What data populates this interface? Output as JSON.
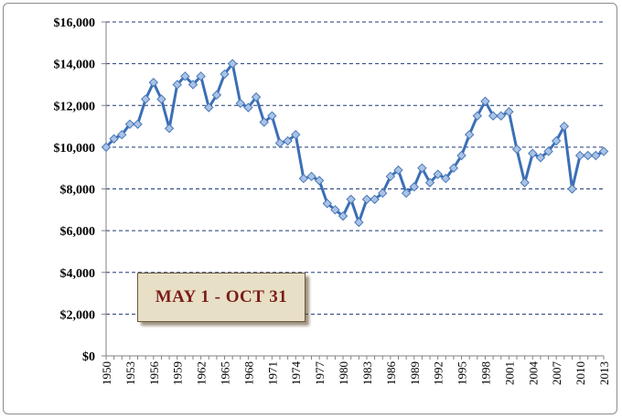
{
  "chart_data": {
    "type": "line",
    "title": "",
    "xlabel": "",
    "ylabel": "",
    "ylim": [
      0,
      16000
    ],
    "yticks": [
      "$0",
      "$2,000",
      "$4,000",
      "$6,000",
      "$8,000",
      "$10,000",
      "$12,000",
      "$14,000",
      "$16,000"
    ],
    "ytick_values": [
      0,
      2000,
      4000,
      6000,
      8000,
      10000,
      12000,
      14000,
      16000
    ],
    "xtick_labels": [
      "1950",
      "1953",
      "1956",
      "1959",
      "1962",
      "1965",
      "1968",
      "1971",
      "1974",
      "1977",
      "1980",
      "1983",
      "1986",
      "1989",
      "1992",
      "1995",
      "1998",
      "2001",
      "2004",
      "2007",
      "2010",
      "2013"
    ],
    "grid": "horizontal-dashed",
    "annotation": "MAY 1 - OCT 31",
    "line_color": "#3b6fb6",
    "marker_color": "#a9c3e6",
    "x": [
      1950,
      1951,
      1952,
      1953,
      1954,
      1955,
      1956,
      1957,
      1958,
      1959,
      1960,
      1961,
      1962,
      1963,
      1964,
      1965,
      1966,
      1967,
      1968,
      1969,
      1970,
      1971,
      1972,
      1973,
      1974,
      1975,
      1976,
      1977,
      1978,
      1979,
      1980,
      1981,
      1982,
      1983,
      1984,
      1985,
      1986,
      1987,
      1988,
      1989,
      1990,
      1991,
      1992,
      1993,
      1994,
      1995,
      1996,
      1997,
      1998,
      1999,
      2000,
      2001,
      2002,
      2003,
      2004,
      2005,
      2006,
      2007,
      2008,
      2009,
      2010,
      2011,
      2012,
      2013
    ],
    "values": [
      10000,
      10400,
      10600,
      11100,
      11100,
      12300,
      13100,
      12300,
      10900,
      13000,
      13400,
      13000,
      13400,
      11900,
      12500,
      13500,
      14000,
      12100,
      11900,
      12400,
      11200,
      11500,
      10200,
      10300,
      10600,
      8500,
      8600,
      8400,
      7300,
      7000,
      6700,
      7500,
      6400,
      7500,
      7500,
      7800,
      8600,
      8900,
      7800,
      8100,
      9000,
      8300,
      8700,
      8500,
      9000,
      9600,
      10600,
      11500,
      12200,
      11500,
      11500,
      11700,
      9900,
      8300,
      9700,
      9500,
      9800,
      10300,
      11000,
      8000,
      9600,
      9600,
      9600,
      9800
    ]
  }
}
